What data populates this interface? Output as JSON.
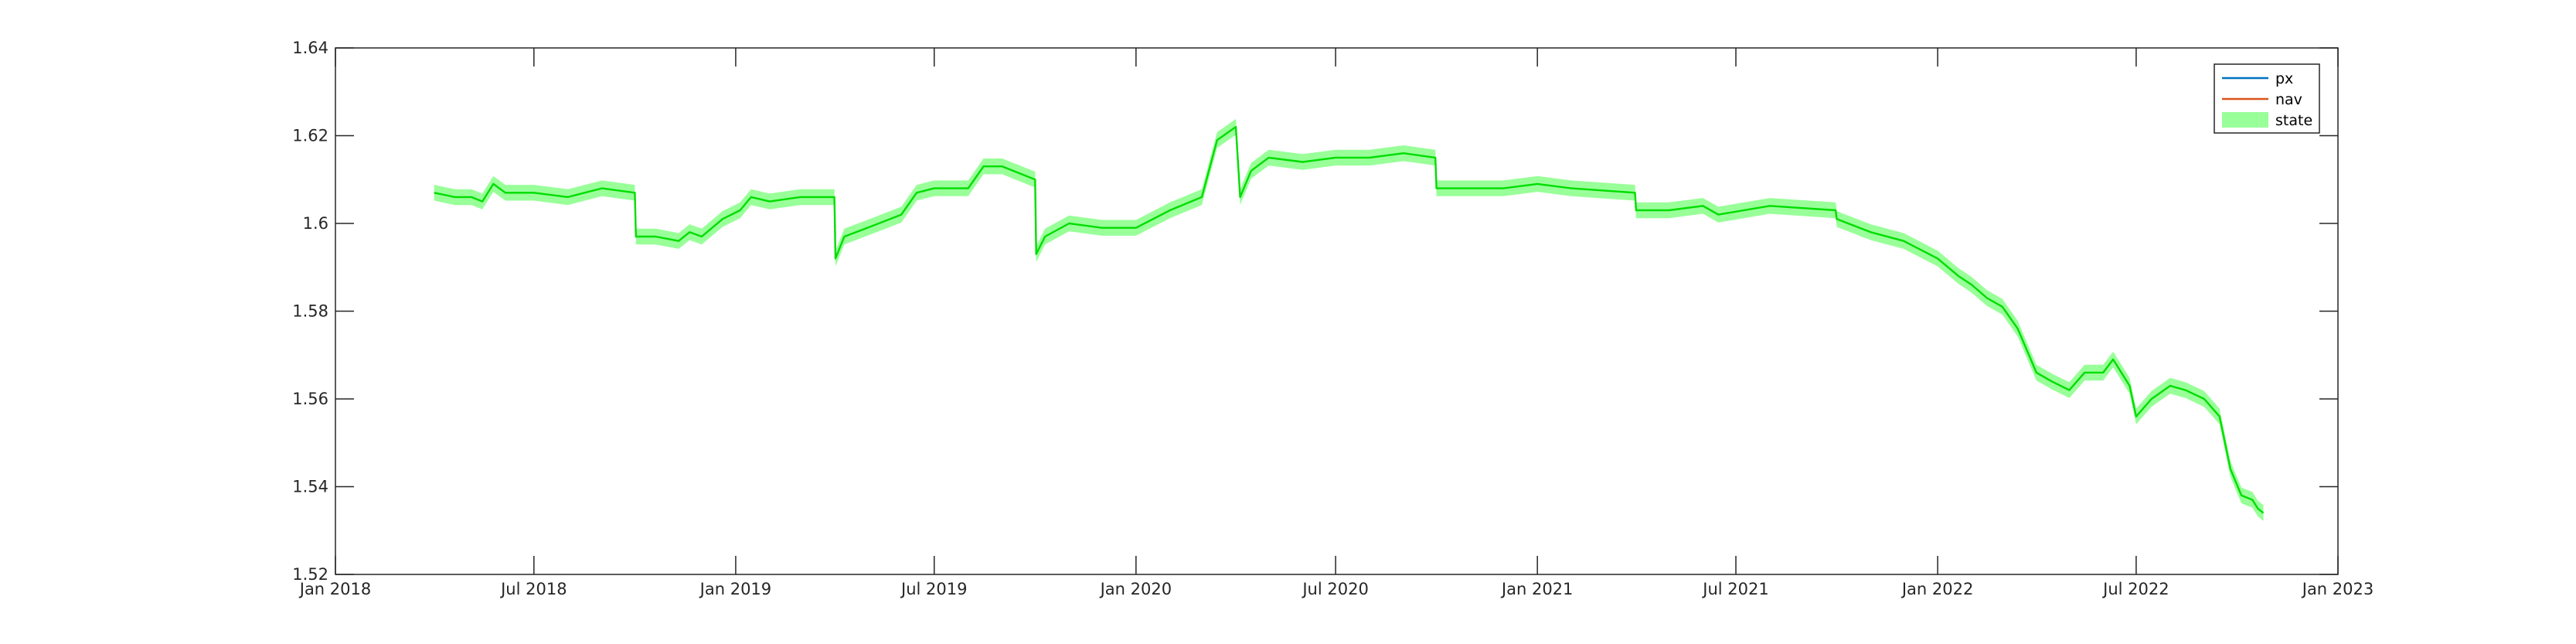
{
  "chart_data": {
    "type": "line",
    "title": "",
    "xlabel": "",
    "ylabel": "",
    "xlim": [
      "2018-01-01",
      "2023-01-01"
    ],
    "ylim": [
      1.52,
      1.64
    ],
    "x_ticks": [
      "2018-01-01",
      "2018-07-01",
      "2019-01-01",
      "2019-07-01",
      "2020-01-01",
      "2020-07-01",
      "2021-01-01",
      "2021-07-01",
      "2022-01-01",
      "2022-07-01",
      "2023-01-01"
    ],
    "x_tick_labels": [
      "Jan 2018",
      "Jul 2018",
      "Jan 2019",
      "Jul 2019",
      "Jan 2020",
      "Jul 2020",
      "Jan 2021",
      "Jul 2021",
      "Jan 2022",
      "Jul 2022",
      "Jan 2023"
    ],
    "y_ticks": [
      1.52,
      1.54,
      1.56,
      1.58,
      1.6,
      1.62,
      1.64
    ],
    "y_tick_labels": [
      "1.52",
      "1.54",
      "1.56",
      "1.58",
      "1.6",
      "1.62",
      "1.64"
    ],
    "grid": false,
    "legend": {
      "position": "top-right",
      "entries": [
        {
          "label": "px",
          "color": "#0072BD",
          "kind": "line"
        },
        {
          "label": "nav",
          "color": "#D95319",
          "kind": "line"
        },
        {
          "label": "state",
          "color": "#99FF99",
          "kind": "patch"
        }
      ]
    },
    "band_halfwidth": 0.0018,
    "series": [
      {
        "name": "state",
        "color": "#00DD00",
        "band_color": "#99FF99",
        "points": [
          [
            "2018-04-01",
            1.607
          ],
          [
            "2018-04-20",
            1.606
          ],
          [
            "2018-05-05",
            1.606
          ],
          [
            "2018-05-15",
            1.605
          ],
          [
            "2018-05-25",
            1.609
          ],
          [
            "2018-06-05",
            1.607
          ],
          [
            "2018-07-01",
            1.607
          ],
          [
            "2018-08-01",
            1.606
          ],
          [
            "2018-09-01",
            1.608
          ],
          [
            "2018-10-01",
            1.607
          ],
          [
            "2018-10-02",
            1.597
          ],
          [
            "2018-10-20",
            1.597
          ],
          [
            "2018-11-10",
            1.596
          ],
          [
            "2018-11-20",
            1.598
          ],
          [
            "2018-12-01",
            1.597
          ],
          [
            "2018-12-20",
            1.601
          ],
          [
            "2019-01-05",
            1.603
          ],
          [
            "2019-01-15",
            1.606
          ],
          [
            "2019-02-01",
            1.605
          ],
          [
            "2019-03-01",
            1.606
          ],
          [
            "2019-04-01",
            1.606
          ],
          [
            "2019-04-02",
            1.592
          ],
          [
            "2019-04-10",
            1.597
          ],
          [
            "2019-05-01",
            1.599
          ],
          [
            "2019-06-01",
            1.602
          ],
          [
            "2019-06-15",
            1.607
          ],
          [
            "2019-07-01",
            1.608
          ],
          [
            "2019-08-01",
            1.608
          ],
          [
            "2019-08-15",
            1.613
          ],
          [
            "2019-09-01",
            1.613
          ],
          [
            "2019-10-01",
            1.61
          ],
          [
            "2019-10-02",
            1.593
          ],
          [
            "2019-10-10",
            1.597
          ],
          [
            "2019-11-01",
            1.6
          ],
          [
            "2019-12-01",
            1.599
          ],
          [
            "2020-01-01",
            1.599
          ],
          [
            "2020-02-01",
            1.603
          ],
          [
            "2020-03-01",
            1.606
          ],
          [
            "2020-03-15",
            1.619
          ],
          [
            "2020-04-01",
            1.622
          ],
          [
            "2020-04-05",
            1.606
          ],
          [
            "2020-04-15",
            1.612
          ],
          [
            "2020-05-01",
            1.615
          ],
          [
            "2020-06-01",
            1.614
          ],
          [
            "2020-07-01",
            1.615
          ],
          [
            "2020-08-01",
            1.615
          ],
          [
            "2020-09-01",
            1.616
          ],
          [
            "2020-09-30",
            1.615
          ],
          [
            "2020-10-01",
            1.608
          ],
          [
            "2020-11-01",
            1.608
          ],
          [
            "2020-12-01",
            1.608
          ],
          [
            "2021-01-01",
            1.609
          ],
          [
            "2021-02-01",
            1.608
          ],
          [
            "2021-03-31",
            1.607
          ],
          [
            "2021-04-01",
            1.603
          ],
          [
            "2021-05-01",
            1.603
          ],
          [
            "2021-06-01",
            1.604
          ],
          [
            "2021-06-15",
            1.602
          ],
          [
            "2021-08-01",
            1.604
          ],
          [
            "2021-09-30",
            1.603
          ],
          [
            "2021-10-01",
            1.601
          ],
          [
            "2021-11-01",
            1.598
          ],
          [
            "2021-12-01",
            1.596
          ],
          [
            "2022-01-01",
            1.592
          ],
          [
            "2022-01-20",
            1.588
          ],
          [
            "2022-02-01",
            1.586
          ],
          [
            "2022-02-15",
            1.583
          ],
          [
            "2022-03-01",
            1.581
          ],
          [
            "2022-03-15",
            1.576
          ],
          [
            "2022-04-01",
            1.566
          ],
          [
            "2022-04-15",
            1.564
          ],
          [
            "2022-05-01",
            1.562
          ],
          [
            "2022-05-15",
            1.566
          ],
          [
            "2022-06-01",
            1.566
          ],
          [
            "2022-06-10",
            1.569
          ],
          [
            "2022-06-25",
            1.563
          ],
          [
            "2022-07-01",
            1.556
          ],
          [
            "2022-07-15",
            1.56
          ],
          [
            "2022-08-01",
            1.563
          ],
          [
            "2022-08-15",
            1.562
          ],
          [
            "2022-09-01",
            1.56
          ],
          [
            "2022-09-15",
            1.556
          ],
          [
            "2022-09-25",
            1.544
          ],
          [
            "2022-10-05",
            1.538
          ],
          [
            "2022-10-15",
            1.537
          ],
          [
            "2022-10-20",
            1.535
          ],
          [
            "2022-10-25",
            1.534
          ]
        ]
      }
    ]
  }
}
